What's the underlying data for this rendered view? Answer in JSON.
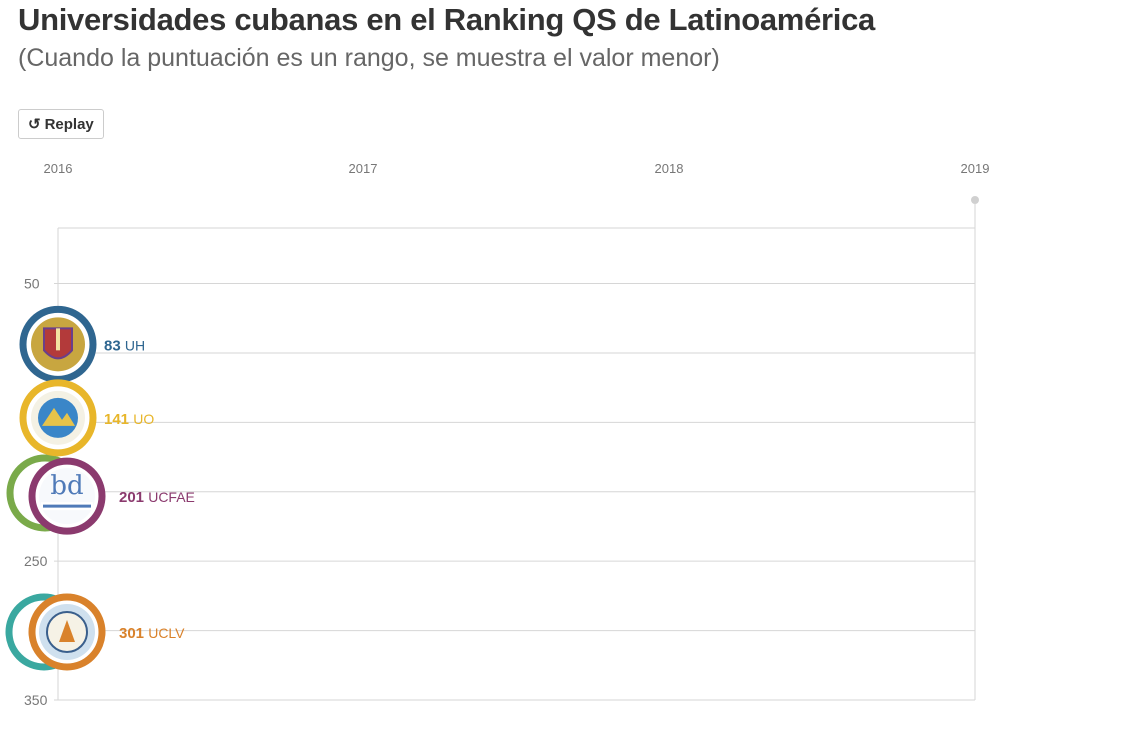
{
  "header": {
    "title": "Universidades cubanas en el Ranking QS de Latinoamérica",
    "subtitle": "(Cuando la puntuación es un rango, se muestra el valor menor)"
  },
  "controls": {
    "replay_label": "Replay",
    "replay_icon": "replay-icon"
  },
  "chart_data": {
    "type": "line",
    "title": "Universidades cubanas en el Ranking QS de Latinoamérica",
    "subtitle": "(Cuando la puntuación es un rango, se muestra el valor menor)",
    "x_ticks": [
      "2016",
      "2017",
      "2018",
      "2019"
    ],
    "y_ticks": [
      50,
      250,
      350
    ],
    "ylim": [
      0,
      350
    ],
    "y_reversed": true,
    "grid": true,
    "current_year": "2016",
    "series": [
      {
        "name": "UH",
        "x": [
          "2016"
        ],
        "values": [
          83
        ],
        "color": "#2f6690"
      },
      {
        "name": "UO",
        "x": [
          "2016"
        ],
        "values": [
          141
        ],
        "color": "#e8b62a"
      },
      {
        "name": "UCF",
        "x": [
          "2016"
        ],
        "values": [
          201
        ],
        "color": "#8b3a6e"
      },
      {
        "name": "UCLV",
        "x": [
          "2016"
        ],
        "values": [
          301
        ],
        "color": "#d9822b"
      }
    ],
    "labels": [
      {
        "value": "83",
        "name": "UH"
      },
      {
        "value": "141",
        "name": "UO"
      },
      {
        "value": "201",
        "name": "UCFAE"
      },
      {
        "value": "301",
        "name": "UCLV"
      }
    ],
    "colors": {
      "uh": "#2f6690",
      "uo": "#e8b62a",
      "ucf": "#8b3a6e",
      "uclv": "#d9822b",
      "green": "#7aaa4a",
      "teal": "#3aa8a0",
      "grid": "#d6d6d6"
    }
  }
}
